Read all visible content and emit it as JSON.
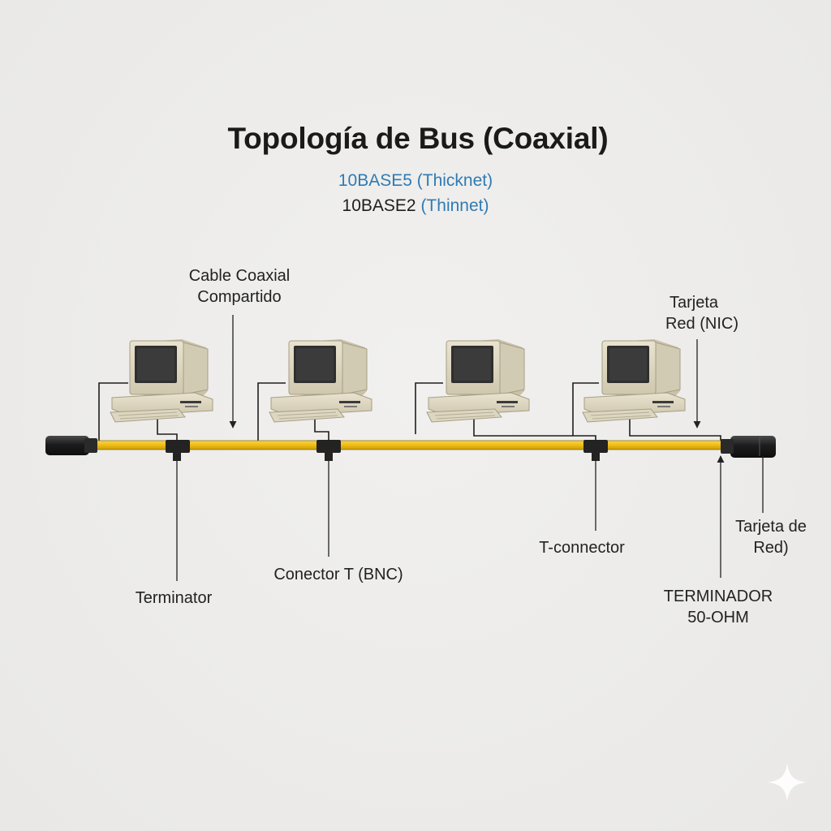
{
  "title": "Topología de Bus (Coaxial)",
  "subtitle_line1": "10BASE5 (Thicknet)",
  "subtitle_line2_a": "10BASE2",
  "subtitle_line2_b": "(Thinnet)",
  "labels": {
    "cable_coaxial_1": "Cable Coaxial",
    "cable_coaxial_2": "Compartido",
    "tarjeta_red_nic_1": "Tarjeta",
    "tarjeta_red_nic_2": "Red (NIC)",
    "terminator": "Terminator",
    "conector_t_bnc": "Conector T (BNC)",
    "t_connector": "T-connector",
    "tarjeta_de_red_1": "Tarjeta de",
    "tarjeta_de_red_2": "Red)",
    "terminador_1": "TERMINADOR",
    "terminador_2": "50-OHM"
  },
  "colors": {
    "cable": "#f2c21e",
    "cable_edge": "#8a6d0a",
    "terminator": "#1f1f1f",
    "computer_body": "#e0d9c3",
    "screen": "#333333",
    "title": "#1a1a1a",
    "accent_blue": "#2f7bb3"
  },
  "icons": [
    "computer-icon",
    "t-connector-icon",
    "terminator-icon",
    "sparkle-icon"
  ]
}
